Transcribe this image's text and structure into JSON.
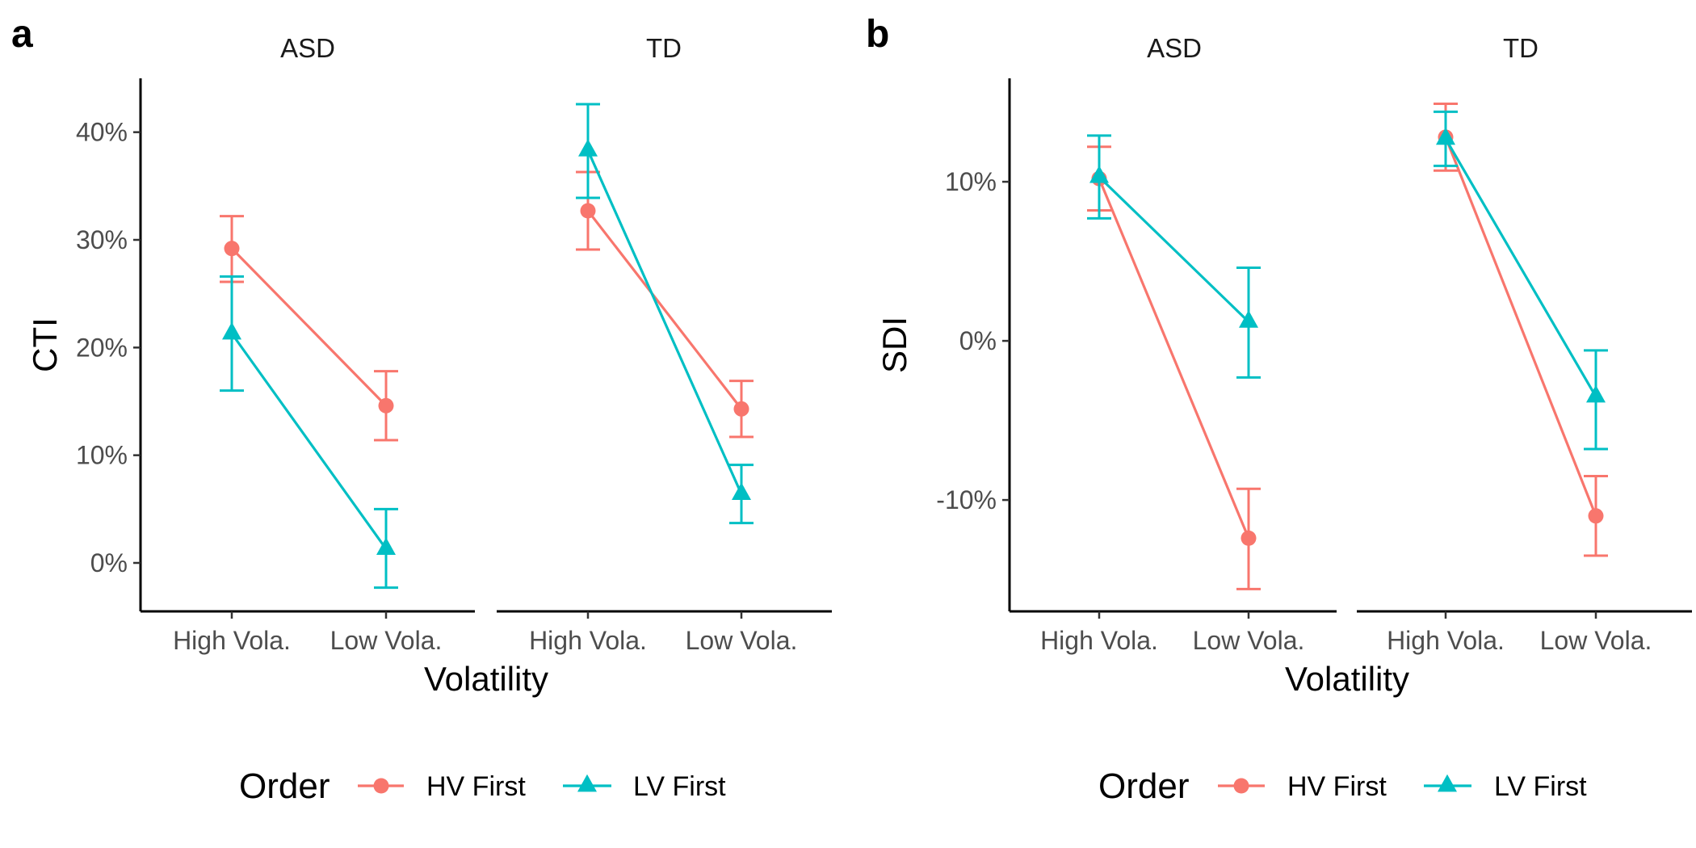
{
  "colors": {
    "hv": "#F8766D",
    "lv": "#00BFC4",
    "axis": "#000000",
    "tick_text": "#4D4D4D"
  },
  "legend": {
    "title": "Order",
    "entries": [
      {
        "label": "HV First",
        "shape": "circle",
        "color": "#F8766D"
      },
      {
        "label": "LV First",
        "shape": "triangle",
        "color": "#00BFC4"
      }
    ]
  },
  "chart_data": [
    {
      "panel_label": "a",
      "type": "line",
      "facets": [
        "ASD",
        "TD"
      ],
      "xlabel": "Volatility",
      "ylabel": "CTI",
      "categories": [
        "High Vola.",
        "Low Vola."
      ],
      "ylim": [
        -4.5,
        45
      ],
      "yticks": [
        0,
        10,
        20,
        30,
        40
      ],
      "ytick_labels": [
        "0%",
        "10%",
        "20%",
        "30%",
        "40%"
      ],
      "legend_position": "bottom",
      "series": [
        {
          "name": "HV First",
          "facet_values": {
            "ASD": [
              {
                "y": 29.2,
                "lo": 26.1,
                "hi": 32.2
              },
              {
                "y": 14.6,
                "lo": 11.4,
                "hi": 17.8
              }
            ],
            "TD": [
              {
                "y": 32.7,
                "lo": 29.1,
                "hi": 36.3
              },
              {
                "y": 14.3,
                "lo": 11.7,
                "hi": 16.9
              }
            ]
          }
        },
        {
          "name": "LV First",
          "facet_values": {
            "ASD": [
              {
                "y": 21.3,
                "lo": 16.0,
                "hi": 26.6
              },
              {
                "y": 1.3,
                "lo": -2.3,
                "hi": 5.0
              }
            ],
            "TD": [
              {
                "y": 38.3,
                "lo": 33.9,
                "hi": 42.6
              },
              {
                "y": 6.4,
                "lo": 3.7,
                "hi": 9.1
              }
            ]
          }
        }
      ]
    },
    {
      "panel_label": "b",
      "type": "line",
      "facets": [
        "ASD",
        "TD"
      ],
      "xlabel": "Volatility",
      "ylabel": "SDI",
      "categories": [
        "High Vola.",
        "Low Vola."
      ],
      "ylim": [
        -17,
        16.5
      ],
      "yticks": [
        -10,
        0,
        10
      ],
      "ytick_labels": [
        "-10%",
        "0%",
        "10%"
      ],
      "legend_position": "bottom",
      "series": [
        {
          "name": "HV First",
          "facet_values": {
            "ASD": [
              {
                "y": 10.2,
                "lo": 8.2,
                "hi": 12.2
              },
              {
                "y": -12.4,
                "lo": -15.6,
                "hi": -9.3
              }
            ],
            "TD": [
              {
                "y": 12.8,
                "lo": 10.7,
                "hi": 14.9
              },
              {
                "y": -11.0,
                "lo": -13.5,
                "hi": -8.5
              }
            ]
          }
        },
        {
          "name": "LV First",
          "facet_values": {
            "ASD": [
              {
                "y": 10.3,
                "lo": 7.7,
                "hi": 12.9
              },
              {
                "y": 1.2,
                "lo": -2.3,
                "hi": 4.6
              }
            ],
            "TD": [
              {
                "y": 12.7,
                "lo": 11.0,
                "hi": 14.4
              },
              {
                "y": -3.5,
                "lo": -6.8,
                "hi": -0.6
              }
            ]
          }
        }
      ]
    }
  ]
}
